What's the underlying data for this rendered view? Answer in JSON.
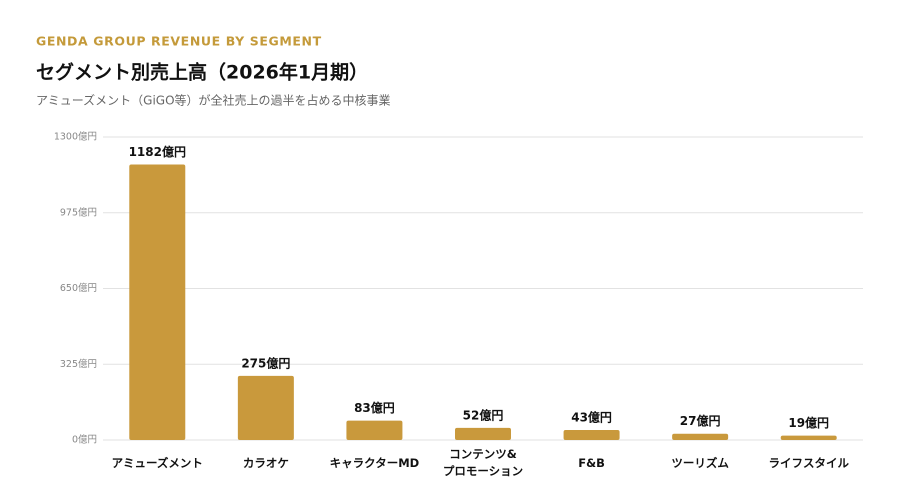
{
  "chart_data": {
    "type": "bar",
    "kicker": "GENDA GROUP REVENUE BY SEGMENT",
    "title": "セグメント別売上高（2026年1月期）",
    "subtitle": "アミューズメント（GiGO等）が全社売上の過半を占める中核事業",
    "categories": [
      "アミューズメント",
      "カラオケ",
      "キャラクターMD",
      "コンテンツ&\nプロモーション",
      "F&B",
      "ツーリズム",
      "ライフスタイル"
    ],
    "values": [
      1182,
      275,
      83,
      52,
      43,
      27,
      19
    ],
    "value_labels": [
      "1182億円",
      "275億円",
      "83億円",
      "52億円",
      "43億円",
      "27億円",
      "19億円"
    ],
    "color": "#c9993c",
    "ylim": [
      0,
      1300
    ],
    "yticks": [
      {
        "value": 0,
        "label": "0億円"
      },
      {
        "value": 325,
        "label": "325億円"
      },
      {
        "value": 650,
        "label": "650億円"
      },
      {
        "value": 975,
        "label": "975億円"
      },
      {
        "value": 1300,
        "label": "1300億円"
      }
    ],
    "grid": true
  }
}
